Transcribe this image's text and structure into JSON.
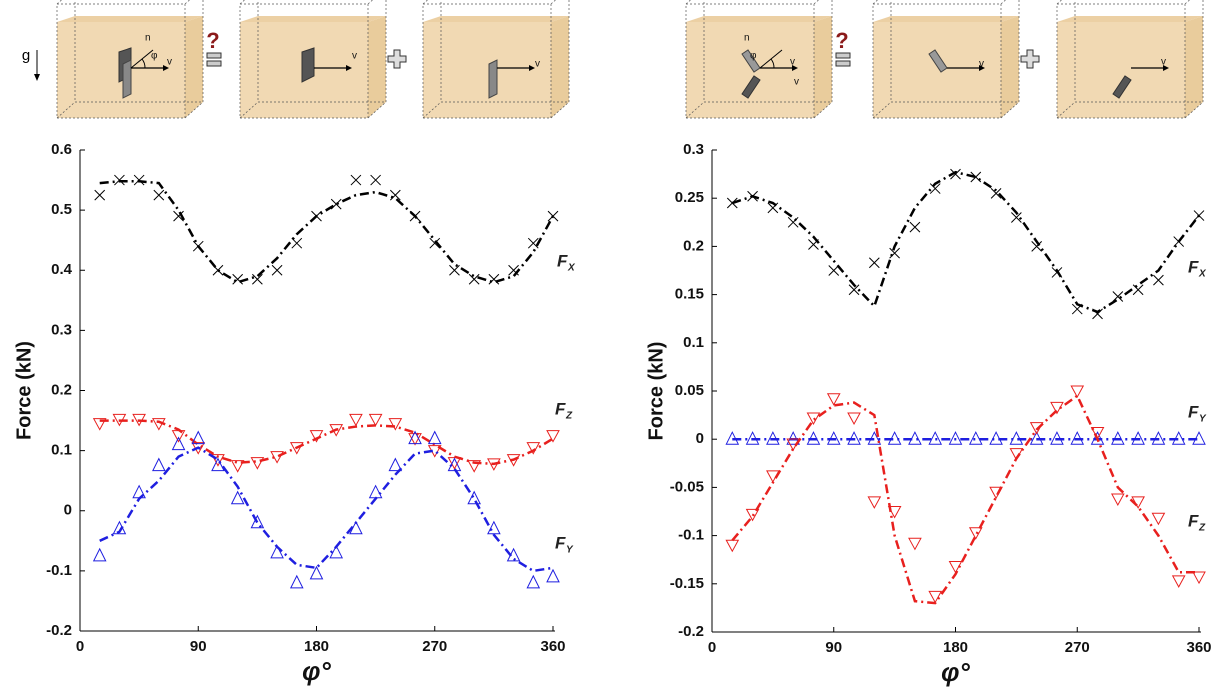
{
  "illustrations": [
    {
      "gravity": "g",
      "question": "?",
      "boxes": [
        {
          "labels": [
            "n",
            "φ",
            "v"
          ]
        },
        {
          "labels": [
            "v"
          ]
        },
        {
          "labels": [
            "v"
          ]
        }
      ]
    },
    {
      "question": "?",
      "boxes": [
        {
          "labels": [
            "n",
            "φ",
            "v",
            "v"
          ]
        },
        {
          "labels": [
            "v"
          ]
        },
        {
          "labels": [
            "v"
          ]
        }
      ]
    }
  ],
  "chart_data": [
    {
      "type": "scatter",
      "ylabel": "Force (kN)",
      "xlabel": "φ°",
      "xlim": [
        0,
        360
      ],
      "xticks": [
        0,
        90,
        180,
        270,
        360
      ],
      "ylim": [
        -0.2,
        0.6
      ],
      "yticks": [
        -0.2,
        -0.1,
        0,
        0.1,
        0.2,
        0.3,
        0.4,
        0.5,
        0.6
      ],
      "x": [
        15,
        30,
        45,
        60,
        75,
        90,
        105,
        120,
        135,
        150,
        165,
        180,
        195,
        210,
        225,
        240,
        255,
        270,
        285,
        300,
        315,
        330,
        345,
        360
      ],
      "series": [
        {
          "name": "F",
          "subscript": "X",
          "color": "#000000",
          "marker": "x",
          "values": [
            0.525,
            0.55,
            0.55,
            0.525,
            0.49,
            0.44,
            0.4,
            0.385,
            0.385,
            0.4,
            0.445,
            0.49,
            0.51,
            0.55,
            0.55,
            0.525,
            0.49,
            0.445,
            0.4,
            0.385,
            0.385,
            0.4,
            0.445,
            0.49
          ],
          "fit_values": [
            0.545,
            0.548,
            0.548,
            0.545,
            0.5,
            0.44,
            0.4,
            0.38,
            0.39,
            0.42,
            0.46,
            0.49,
            0.51,
            0.525,
            0.53,
            0.52,
            0.49,
            0.45,
            0.41,
            0.39,
            0.38,
            0.39,
            0.43,
            0.49
          ]
        },
        {
          "name": "F",
          "subscript": "Z",
          "color": "#e8201e",
          "marker": "triangle-down",
          "values": [
            0.145,
            0.152,
            0.152,
            0.145,
            0.125,
            0.105,
            0.085,
            0.075,
            0.08,
            0.09,
            0.105,
            0.125,
            0.135,
            0.152,
            0.152,
            0.145,
            0.12,
            0.1,
            0.08,
            0.075,
            0.078,
            0.085,
            0.105,
            0.125
          ],
          "fit_values": [
            0.15,
            0.15,
            0.15,
            0.148,
            0.135,
            0.11,
            0.09,
            0.08,
            0.082,
            0.09,
            0.105,
            0.12,
            0.135,
            0.14,
            0.142,
            0.14,
            0.13,
            0.11,
            0.09,
            0.08,
            0.078,
            0.085,
            0.1,
            0.12
          ]
        },
        {
          "name": "F",
          "subscript": "Y",
          "color": "#1f1fe0",
          "marker": "triangle-up",
          "values": [
            -0.075,
            -0.03,
            0.03,
            0.075,
            0.11,
            0.12,
            0.075,
            0.02,
            -0.02,
            -0.07,
            -0.12,
            -0.105,
            -0.07,
            -0.03,
            0.03,
            0.075,
            0.12,
            0.12,
            0.075,
            0.02,
            -0.03,
            -0.075,
            -0.12,
            -0.11
          ],
          "fit_values": [
            -0.05,
            -0.035,
            0.02,
            0.05,
            0.09,
            0.105,
            0.085,
            0.04,
            -0.02,
            -0.06,
            -0.09,
            -0.095,
            -0.06,
            -0.02,
            0.02,
            0.06,
            0.095,
            0.1,
            0.07,
            0.02,
            -0.04,
            -0.08,
            -0.1,
            -0.095
          ]
        }
      ]
    },
    {
      "type": "scatter",
      "ylabel": "Force (kN)",
      "xlabel": "φ°",
      "xlim": [
        0,
        360
      ],
      "xticks": [
        0,
        90,
        180,
        270,
        360
      ],
      "ylim": [
        -0.2,
        0.3
      ],
      "yticks": [
        -0.2,
        -0.15,
        -0.1,
        -0.05,
        0,
        0.05,
        0.1,
        0.15,
        0.2,
        0.25,
        0.3
      ],
      "x": [
        15,
        30,
        45,
        60,
        75,
        90,
        105,
        120,
        135,
        150,
        165,
        180,
        195,
        210,
        225,
        240,
        255,
        270,
        285,
        300,
        315,
        330,
        345,
        360
      ],
      "series": [
        {
          "name": "F",
          "subscript": "X",
          "color": "#000000",
          "marker": "x",
          "values": [
            0.245,
            0.252,
            0.24,
            0.225,
            0.202,
            0.175,
            0.155,
            0.183,
            0.193,
            0.22,
            0.26,
            0.275,
            0.272,
            0.255,
            0.23,
            0.2,
            0.173,
            0.135,
            0.13,
            0.148,
            0.155,
            0.165,
            0.205,
            0.232
          ],
          "fit_values": [
            0.245,
            0.252,
            0.245,
            0.23,
            0.21,
            0.185,
            0.16,
            0.138,
            0.2,
            0.24,
            0.265,
            0.277,
            0.272,
            0.258,
            0.235,
            0.205,
            0.175,
            0.14,
            0.132,
            0.145,
            0.16,
            0.175,
            0.205,
            0.232
          ]
        },
        {
          "name": "F",
          "subscript": "Y",
          "color": "#1f1fe0",
          "marker": "triangle-up",
          "values": [
            0,
            0,
            0,
            0,
            0,
            0,
            0,
            0,
            0,
            0,
            0,
            0,
            0,
            0,
            0,
            0,
            0,
            0,
            0,
            0,
            0,
            0,
            0,
            0
          ],
          "fit_values": [
            0,
            0,
            0,
            0,
            0,
            0,
            0,
            0,
            0,
            0,
            0,
            0,
            0,
            0,
            0,
            0,
            0,
            0,
            0,
            0,
            0,
            0,
            0,
            0
          ]
        },
        {
          "name": "F",
          "subscript": "Z",
          "color": "#e8201e",
          "marker": "triangle-down",
          "values": [
            -0.11,
            -0.078,
            -0.038,
            -0.005,
            0.022,
            0.042,
            0.022,
            -0.065,
            -0.075,
            -0.108,
            -0.163,
            -0.132,
            -0.097,
            -0.055,
            -0.015,
            0.012,
            0.033,
            0.05,
            0.007,
            -0.062,
            -0.065,
            -0.082,
            -0.147,
            -0.143
          ],
          "fit_values": [
            -0.105,
            -0.08,
            -0.045,
            -0.01,
            0.02,
            0.035,
            0.038,
            0.025,
            -0.1,
            -0.168,
            -0.17,
            -0.14,
            -0.1,
            -0.06,
            -0.02,
            0.01,
            0.03,
            0.045,
            0.0,
            -0.05,
            -0.07,
            -0.1,
            -0.138,
            -0.138
          ]
        }
      ]
    }
  ]
}
